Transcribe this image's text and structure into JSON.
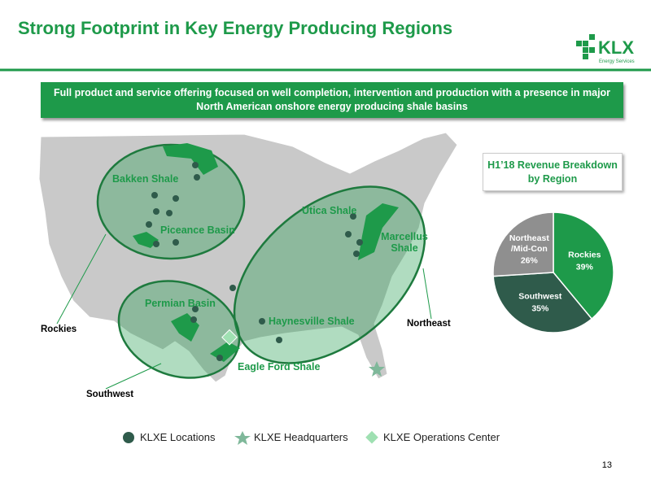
{
  "header": {
    "title": "Strong Footprint in Key Energy Producing Regions",
    "logo": "KLX",
    "logo_sub": "Energy Services"
  },
  "banner": "Full product and service offering focused on well completion, intervention and production with a presence in major North American onshore energy producing shale basins",
  "map": {
    "basins": [
      "Bakken Shale",
      "Piceance Basin",
      "Utica Shale",
      "Marcellus Shale",
      "Permian Basin",
      "Haynesville Shale",
      "Eagle Ford Shale"
    ],
    "regions": [
      "Rockies",
      "Northeast",
      "Southwest"
    ]
  },
  "legend": [
    "KLXE Locations",
    "KLXE Headquarters",
    "KLXE Operations Center"
  ],
  "chart_data": {
    "type": "pie",
    "title": "H1’18 Revenue Breakdown by Region",
    "categories": [
      "Rockies",
      "Southwest",
      "Northeast /Mid-Con"
    ],
    "values": [
      39,
      35,
      26
    ],
    "value_labels": [
      "39%",
      "35%",
      "26%"
    ],
    "colors": [
      "#1e9a4a",
      "#2f5b4b",
      "#8f8f8f"
    ]
  },
  "page_number": "13"
}
